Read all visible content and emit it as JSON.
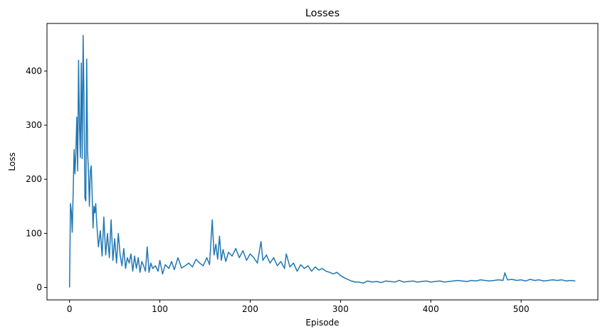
{
  "chart_data": {
    "type": "line",
    "title": "Losses",
    "xlabel": "Episode",
    "ylabel": "Loss",
    "xlim": [
      -25,
      585
    ],
    "ylim": [
      -23,
      488
    ],
    "xticks": [
      0,
      100,
      200,
      300,
      400,
      500
    ],
    "yticks": [
      0,
      100,
      200,
      300,
      400
    ],
    "grid": false,
    "legend": "none",
    "color": "#1f77b4",
    "series": [
      {
        "x": [
          0,
          1,
          2,
          3,
          4,
          5,
          6,
          7,
          8,
          9,
          10,
          11,
          12,
          13,
          14,
          15,
          16,
          17,
          18,
          19,
          20,
          21,
          22,
          23,
          24,
          25,
          26,
          27,
          28,
          29,
          30,
          32,
          34,
          36,
          38,
          40,
          42,
          44,
          46,
          48,
          50,
          52,
          54,
          56,
          58,
          60,
          62,
          64,
          66,
          68,
          70,
          72,
          74,
          76,
          78,
          80,
          82,
          84,
          86,
          88,
          90,
          92,
          95,
          98,
          100,
          103,
          106,
          110,
          113,
          116,
          120,
          124,
          128,
          132,
          136,
          140,
          144,
          148,
          152,
          155,
          158,
          160,
          162,
          164,
          166,
          168,
          170,
          173,
          176,
          180,
          184,
          188,
          192,
          196,
          200,
          204,
          208,
          212,
          214,
          218,
          222,
          226,
          230,
          234,
          238,
          240,
          244,
          248,
          252,
          256,
          260,
          264,
          268,
          272,
          276,
          280,
          284,
          288,
          292,
          296,
          300,
          304,
          308,
          312,
          316,
          320,
          325,
          330,
          335,
          340,
          345,
          350,
          355,
          360,
          365,
          370,
          375,
          380,
          385,
          390,
          395,
          400,
          405,
          410,
          415,
          420,
          425,
          430,
          435,
          440,
          445,
          450,
          455,
          460,
          465,
          470,
          475,
          480,
          482,
          485,
          490,
          495,
          500,
          505,
          510,
          515,
          520,
          525,
          530,
          535,
          540,
          545,
          550,
          555,
          560
        ],
        "y": [
          0,
          155,
          140,
          102,
          175,
          255,
          210,
          250,
          315,
          215,
          420,
          300,
          240,
          415,
          238,
          466,
          350,
          165,
          160,
          422,
          250,
          210,
          150,
          215,
          225,
          175,
          110,
          150,
          138,
          155,
          120,
          75,
          105,
          58,
          130,
          60,
          100,
          55,
          125,
          50,
          90,
          45,
          100,
          60,
          40,
          72,
          35,
          55,
          45,
          62,
          30,
          58,
          35,
          55,
          28,
          48,
          40,
          30,
          75,
          28,
          45,
          35,
          40,
          30,
          50,
          25,
          42,
          35,
          48,
          33,
          55,
          36,
          40,
          45,
          38,
          52,
          45,
          40,
          55,
          42,
          125,
          60,
          80,
          52,
          95,
          50,
          70,
          48,
          65,
          58,
          72,
          55,
          68,
          50,
          62,
          55,
          45,
          85,
          50,
          60,
          45,
          55,
          40,
          48,
          35,
          62,
          38,
          45,
          30,
          42,
          35,
          40,
          30,
          38,
          32,
          35,
          30,
          28,
          25,
          28,
          22,
          18,
          15,
          12,
          10,
          10,
          8,
          12,
          10,
          11,
          9,
          12,
          11,
          10,
          13,
          10,
          11,
          12,
          10,
          11,
          12,
          10,
          11,
          12,
          10,
          11,
          12,
          13,
          12,
          11,
          13,
          12,
          14,
          13,
          12,
          13,
          14,
          13,
          27,
          14,
          15,
          13,
          14,
          12,
          15,
          13,
          14,
          12,
          13,
          14,
          13,
          14,
          12,
          13,
          12
        ]
      }
    ]
  }
}
